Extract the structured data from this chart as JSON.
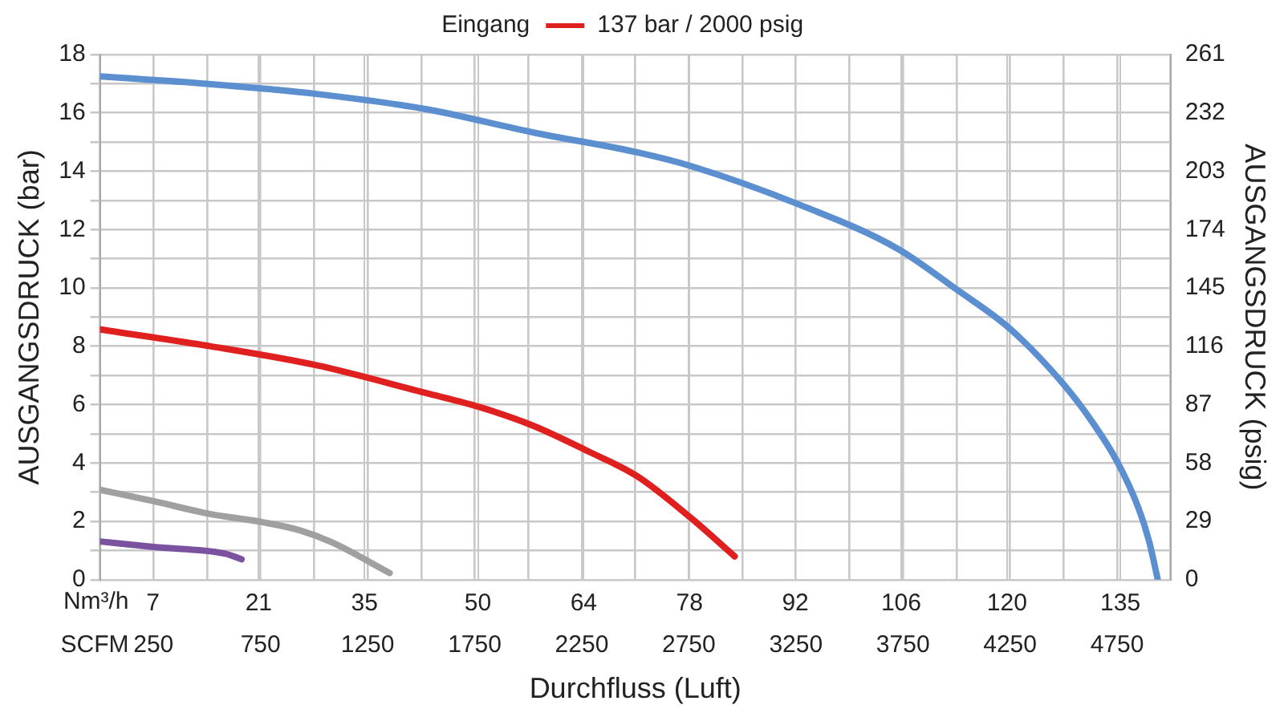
{
  "chart_data": {
    "type": "line",
    "legend_title": "Eingang",
    "legend": "top",
    "xlabel": "Durchfluss (Luft)",
    "x2label": "Nm³/h",
    "ylabel": "AUSGANGSDRUCK (bar)",
    "y2label": "AUSGANGSDRUCK (psig)",
    "annotations": [
      "SCFM"
    ],
    "grid": true,
    "marker": "none",
    "xlim": [
      0,
      5000
    ],
    "xticks": [
      {
        "value": 0,
        "label": null
      },
      250,
      {
        "value": 500,
        "label": null
      },
      750,
      {
        "value": 1000,
        "label": null
      },
      1250,
      {
        "value": 1500,
        "label": null
      },
      1750,
      {
        "value": 2000,
        "label": null
      },
      2250,
      {
        "value": 2500,
        "label": null
      },
      2750,
      {
        "value": 3000,
        "label": null
      },
      3250,
      {
        "value": 3500,
        "label": null
      },
      3750,
      {
        "value": 4000,
        "label": null
      },
      4250,
      {
        "value": 4500,
        "label": null
      },
      4750,
      {
        "value": 5000,
        "label": null
      }
    ],
    "x2lim": [
      0,
      141.65
    ],
    "x2ticks": [
      7,
      21,
      35,
      50,
      64,
      78,
      92,
      106,
      120,
      135
    ],
    "ylim": [
      0,
      18
    ],
    "yticks": [
      0,
      {
        "value": 1,
        "label": null
      },
      2,
      {
        "value": 3,
        "label": null
      },
      4,
      {
        "value": 5,
        "label": null
      },
      6,
      {
        "value": 7,
        "label": null
      },
      8,
      {
        "value": 9,
        "label": null
      },
      10,
      {
        "value": 11,
        "label": null
      },
      12,
      {
        "value": 13,
        "label": null
      },
      14,
      {
        "value": 15,
        "label": null
      },
      16,
      {
        "value": 17,
        "label": null
      },
      18
    ],
    "y2lim": [
      0,
      261
    ],
    "y2ticks": [
      0,
      29,
      58,
      87,
      116,
      145,
      174,
      203,
      232,
      261
    ],
    "series": [
      {
        "color": "#5b8fd0",
        "x": [
          0,
          509,
          1011,
          1520,
          2029,
          2508,
          2759,
          3268,
          3724,
          4000,
          4250,
          4500,
          4625,
          4750,
          4850,
          4900,
          4940
        ],
        "values": [
          17.25,
          16.99,
          16.65,
          16.13,
          15.32,
          14.65,
          14.18,
          12.85,
          11.35,
          9.95,
          8.6,
          6.7,
          5.5,
          4.05,
          2.45,
          1.3,
          0
        ]
      },
      {
        "name": "137 bar / 2000 psig",
        "color": "#e0201f",
        "x": [
          0,
          509,
          1011,
          1520,
          1771,
          2029,
          2280,
          2508,
          2759,
          2964
        ],
        "values": [
          8.58,
          8.01,
          7.35,
          6.4,
          5.92,
          5.26,
          4.4,
          3.55,
          2.12,
          0.8
        ]
      },
      {
        "color": "#a0a0a0",
        "x": [
          0,
          251,
          509,
          760,
          935,
          1087,
          1353
        ],
        "values": [
          3.08,
          2.69,
          2.26,
          1.97,
          1.69,
          1.27,
          0.23
        ]
      },
      {
        "color": "#7a52a0",
        "x": [
          0,
          251,
          585,
          661
        ],
        "values": [
          1.31,
          1.12,
          0.89,
          0.7
        ]
      }
    ]
  }
}
